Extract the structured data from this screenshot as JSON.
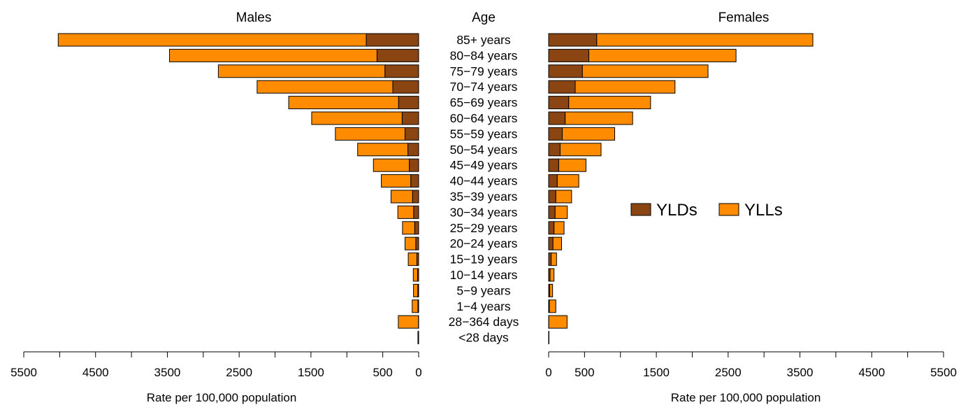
{
  "chart_data": {
    "type": "bar",
    "orientation": "horizontal-pyramid",
    "panels": [
      {
        "key": "males",
        "title": "Males",
        "direction": "left"
      },
      {
        "key": "females",
        "title": "Females",
        "direction": "right"
      }
    ],
    "center_title": "Age",
    "categories": [
      "85+ years",
      "80−84 years",
      "75−79 years",
      "70−74 years",
      "65−69 years",
      "60−64 years",
      "55−59 years",
      "50−54 years",
      "45−49 years",
      "40−44 years",
      "35−39 years",
      "30−34 years",
      "25−29 years",
      "20−24 years",
      "15−19 years",
      "10−14 years",
      "5−9 years",
      "1−4 years",
      "28−364 days",
      "<28 days"
    ],
    "series": [
      {
        "name": "YLDs",
        "color": "#8B4513",
        "males": [
          730,
          580,
          470,
          360,
          280,
          230,
          190,
          150,
          130,
          110,
          85,
          70,
          55,
          40,
          25,
          15,
          12,
          10,
          3,
          0
        ],
        "females": [
          670,
          560,
          470,
          370,
          280,
          230,
          190,
          160,
          140,
          120,
          100,
          90,
          75,
          60,
          35,
          20,
          15,
          10,
          2,
          0
        ]
      },
      {
        "name": "YLLs",
        "color": "#FF8C00",
        "males": [
          4290,
          2890,
          2320,
          1890,
          1530,
          1260,
          970,
          700,
          500,
          410,
          300,
          220,
          170,
          150,
          120,
          60,
          60,
          80,
          280,
          10
        ],
        "females": [
          3010,
          2050,
          1750,
          1390,
          1140,
          940,
          730,
          570,
          380,
          300,
          220,
          170,
          140,
          120,
          75,
          55,
          40,
          90,
          255,
          5
        ]
      }
    ],
    "x_ticks": [
      0,
      500,
      1500,
      2500,
      3500,
      4500,
      5500
    ],
    "xlim": [
      0,
      5500
    ],
    "xlabel": "Rate per 100,000 population",
    "legend": {
      "position": "center-right",
      "entries": [
        "YLDs",
        "YLLs"
      ]
    }
  }
}
